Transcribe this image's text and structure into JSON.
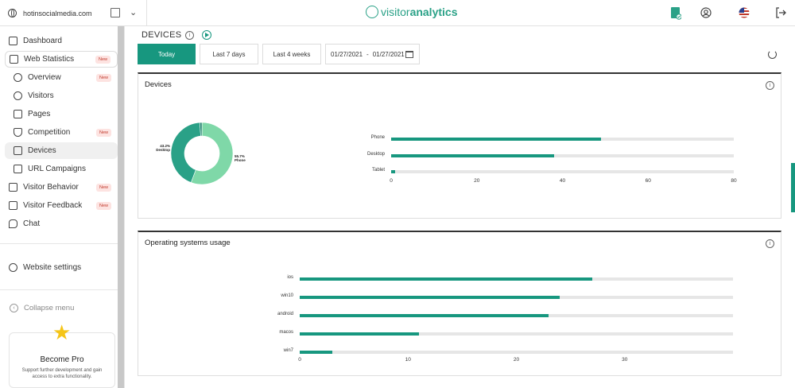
{
  "topbar": {
    "site": "hotinsocialmedia.com",
    "logo_light": "visitor",
    "logo_bold": "analytics",
    "brand_color": "#2aa187"
  },
  "sidebar": {
    "items": [
      {
        "label": "Dashboard",
        "icon": "dashboard-icon",
        "badge": ""
      },
      {
        "label": "Web Statistics",
        "icon": "bar-chart-icon",
        "badge": "New"
      },
      {
        "label": "Overview",
        "icon": "overview-icon",
        "badge": "New"
      },
      {
        "label": "Visitors",
        "icon": "visitors-icon",
        "badge": ""
      },
      {
        "label": "Pages",
        "icon": "pages-icon",
        "badge": ""
      },
      {
        "label": "Competition",
        "icon": "competition-icon",
        "badge": "New"
      },
      {
        "label": "Devices",
        "icon": "devices-icon",
        "badge": ""
      },
      {
        "label": "URL Campaigns",
        "icon": "megaphone-icon",
        "badge": ""
      },
      {
        "label": "Visitor Behavior",
        "icon": "behavior-icon",
        "badge": "New"
      },
      {
        "label": "Visitor Feedback",
        "icon": "feedback-icon",
        "badge": "New"
      },
      {
        "label": "Chat",
        "icon": "chat-icon",
        "badge": ""
      }
    ],
    "settings": "Website settings",
    "collapse": "Collapse menu",
    "pro_title": "Become Pro",
    "pro_desc": "Support further development and gain access to extra functionality."
  },
  "main": {
    "title": "DEVICES",
    "tabs": [
      "Today",
      "Last 7 days",
      "Last 4 weeks"
    ],
    "date_from": "01/27/2021",
    "date_sep": "-",
    "date_to": "01/27/2021",
    "accent": "#17977f"
  },
  "devices_card": {
    "title": "Devices",
    "donut_desktop_pct": "43.2%",
    "donut_desktop_label": "Desktop",
    "donut_phone_pct": "55.7%",
    "donut_phone_label": "Phone",
    "axis_ticks": [
      "0",
      "20",
      "40",
      "60",
      "80"
    ]
  },
  "os_card": {
    "title": "Operating systems usage",
    "axis_ticks": [
      "0",
      "10",
      "20",
      "30"
    ]
  },
  "chart_data": [
    {
      "type": "pie",
      "title": "Devices",
      "categories": [
        "Phone",
        "Desktop",
        "Tablet"
      ],
      "values": [
        55.7,
        43.2,
        1.1
      ],
      "colors": [
        "#7fd8a8",
        "#2aa187",
        "#1a7f6a"
      ]
    },
    {
      "type": "bar",
      "orientation": "horizontal",
      "title": "Devices",
      "categories": [
        "Phone",
        "Desktop",
        "Tablet"
      ],
      "values": [
        49,
        38,
        1
      ],
      "xlim": [
        0,
        80
      ],
      "ticks": [
        0,
        20,
        40,
        60,
        80
      ]
    },
    {
      "type": "bar",
      "orientation": "horizontal",
      "title": "Operating systems usage",
      "categories": [
        "ios",
        "win10",
        "android",
        "macos",
        "win7"
      ],
      "values": [
        27,
        24,
        23,
        11,
        3
      ],
      "xlim": [
        0,
        40
      ],
      "ticks": [
        0,
        10,
        20,
        30
      ]
    }
  ]
}
